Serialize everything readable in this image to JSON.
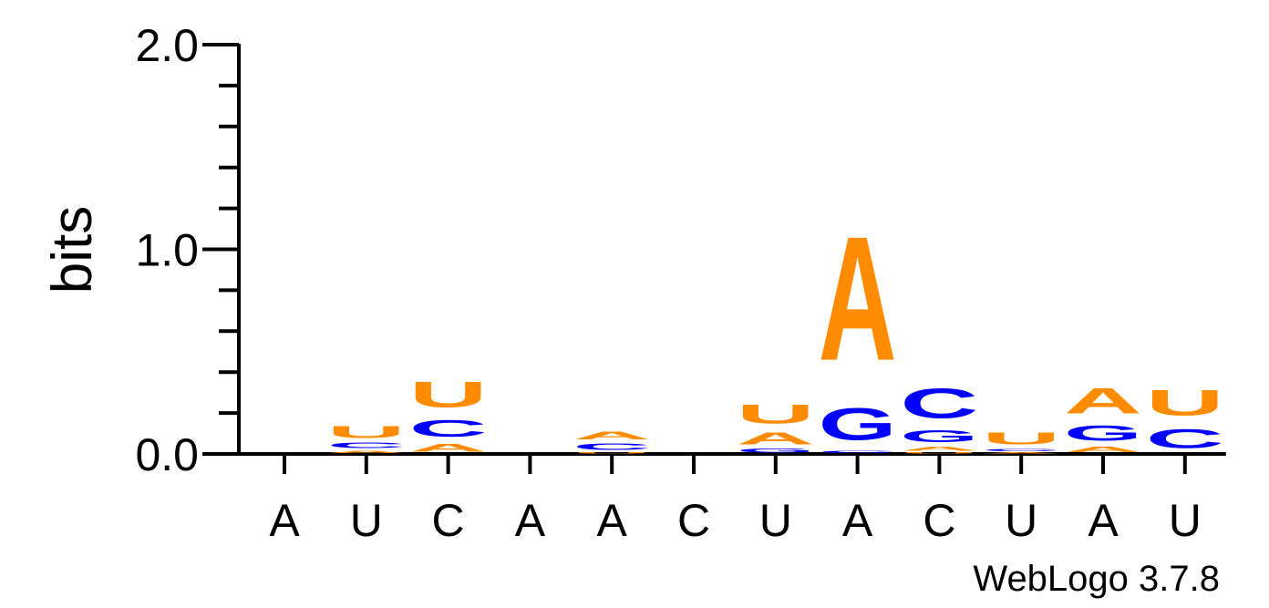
{
  "chart_data": {
    "type": "sequence-logo",
    "ylabel": "bits",
    "ylim": [
      0,
      2
    ],
    "yticks": [
      "0.0",
      "1.0",
      "2.0"
    ],
    "positions": [
      "A",
      "U",
      "C",
      "A",
      "A",
      "C",
      "U",
      "A",
      "C",
      "U",
      "A",
      "U"
    ],
    "colors": {
      "A": "#ff8c00",
      "U": "#ff8c00",
      "C": "#0000ff",
      "G": "#0000ff"
    },
    "stacks": [
      [],
      [
        [
          "A",
          0.02
        ],
        [
          "C",
          0.04
        ],
        [
          "U",
          0.09
        ]
      ],
      [
        [
          "A",
          0.06
        ],
        [
          "C",
          0.13
        ],
        [
          "U",
          0.2
        ]
      ],
      [],
      [
        [
          "U",
          0.01
        ],
        [
          "C",
          0.05
        ],
        [
          "A",
          0.06
        ]
      ],
      [],
      [
        [
          "G",
          0.03
        ],
        [
          "A",
          0.09
        ],
        [
          "U",
          0.15
        ]
      ],
      [
        [
          "C",
          0.02
        ],
        [
          "G",
          0.25
        ],
        [
          "A",
          0.97
        ]
      ],
      [
        [
          "U",
          0.01
        ],
        [
          "A",
          0.03
        ],
        [
          "G",
          0.09
        ],
        [
          "C",
          0.23
        ]
      ],
      [
        [
          "A",
          0.01
        ],
        [
          "C",
          0.02
        ],
        [
          "U",
          0.09
        ]
      ],
      [
        [
          "A",
          0.04
        ],
        [
          "G",
          0.12
        ],
        [
          "A",
          0.2
        ]
      ],
      [
        [
          "C",
          0.15
        ],
        [
          "U",
          0.2
        ]
      ]
    ],
    "credit": "WebLogo 3.7.8"
  }
}
